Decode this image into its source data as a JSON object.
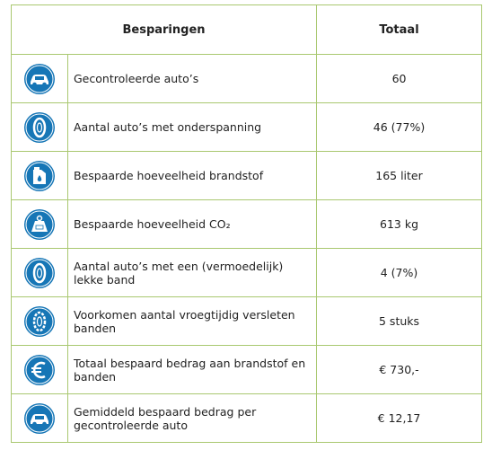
{
  "header": {
    "title": "Besparingen",
    "total": "Totaal"
  },
  "table": {
    "rows": [
      [
        "Gecontroleerde auto’s",
        "60"
      ],
      [
        "Aantal auto’s met onderspanning",
        "46 (77%)"
      ],
      [
        "Bespaarde hoeveelheid brandstof",
        "165 liter"
      ],
      [
        "Bespaarde hoeveelheid CO₂",
        "613 kg"
      ],
      [
        "Aantal auto’s met een (vermoedelijk) lekke band",
        "4 (7%)"
      ],
      [
        "Voorkomen aantal vroegtijdig versleten banden",
        "5 stuks"
      ],
      [
        "Totaal bespaard bedrag aan brandstof en banden",
        "€ 730,-"
      ],
      [
        "Gemiddeld bespaard bedrag per gecontroleerde auto",
        "€ 12,17"
      ]
    ]
  }
}
